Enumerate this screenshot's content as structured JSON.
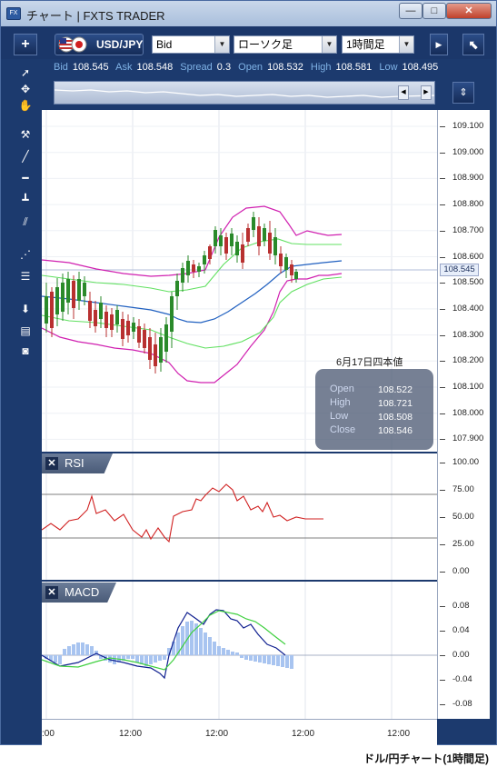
{
  "window": {
    "title": "チャート | FXTS TRADER",
    "app_icon": "FX",
    "minimize": "—",
    "maximize": "□",
    "close": "✕"
  },
  "toolbar": {
    "add_label": "+",
    "symbol": "USD/JPY",
    "price_type": "Bid",
    "chart_type": "ローソク足",
    "timeframe": "1時間足",
    "undock_icon": "⬉"
  },
  "quote": {
    "bid_label": "Bid",
    "bid": "108.545",
    "ask_label": "Ask",
    "ask": "108.548",
    "spread_label": "Spread",
    "spread": "0.3",
    "open_label": "Open",
    "open": "108.532",
    "high_label": "High",
    "high": "108.581",
    "low_label": "Low",
    "low": "108.495"
  },
  "price_axis": {
    "ticks": [
      "109.100",
      "109.000",
      "108.900",
      "108.800",
      "108.700",
      "108.600",
      "108.500",
      "108.400",
      "108.300",
      "108.200",
      "108.100",
      "108.000",
      "107.900"
    ],
    "current": "108.545"
  },
  "rsi_axis": {
    "ticks": [
      "100.00",
      "75.00",
      "50.00",
      "25.00",
      "0.00"
    ]
  },
  "macd_axis": {
    "ticks": [
      "0.08",
      "0.04",
      "0.00",
      "-0.04",
      "-0.08"
    ]
  },
  "time_axis": {
    "ticks": [
      ":00",
      "12:00",
      "12:00",
      "12:00",
      "12:00"
    ]
  },
  "panes": {
    "rsi": "RSI",
    "macd": "MACD"
  },
  "tooltip": {
    "date": "6月17日四本値",
    "open_label": "Open",
    "open": "108.522",
    "high_label": "High",
    "high": "108.721",
    "low_label": "Low",
    "low": "108.508",
    "close_label": "Close",
    "close": "108.546"
  },
  "caption": "ドル/円チャート(1時間足)",
  "colors": {
    "window_bg": "#1c3a6e",
    "candle_up": "#2a8a2a",
    "candle_down": "#b83030",
    "bb_outer": "#d020b0",
    "bb_inner": "#60e060",
    "bb_mid": "#2060c0",
    "rsi_line": "#d02020",
    "macd_line": "#102090",
    "signal_line": "#40d040",
    "histogram": "#a8c4f0"
  }
}
